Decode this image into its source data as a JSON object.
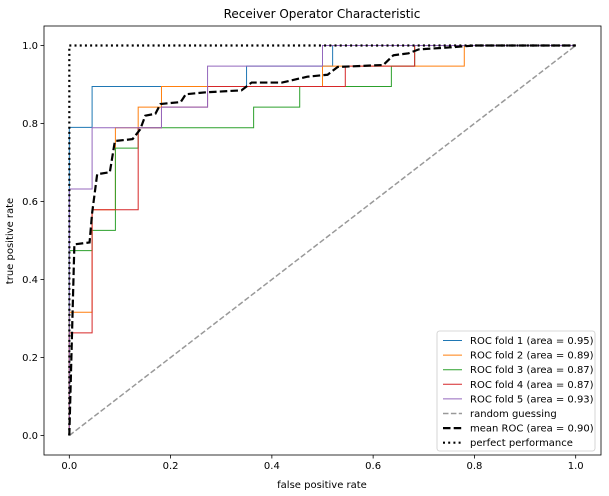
{
  "chart_data": {
    "type": "line",
    "title": "Receiver Operator Characteristic",
    "xlabel": "false positive rate",
    "ylabel": "true positive rate",
    "xlim": [
      -0.05,
      1.05
    ],
    "ylim": [
      -0.05,
      1.05
    ],
    "xticks": [
      0.0,
      0.2,
      0.4,
      0.6,
      0.8,
      1.0
    ],
    "xtick_labels": [
      "0.0",
      "0.2",
      "0.4",
      "0.6",
      "0.8",
      "1.0"
    ],
    "yticks": [
      0.0,
      0.2,
      0.4,
      0.6,
      0.8,
      1.0
    ],
    "ytick_labels": [
      "0.0",
      "0.2",
      "0.4",
      "0.6",
      "0.8",
      "1.0"
    ],
    "grid": false,
    "legend_position": "lower-right",
    "series": [
      {
        "name": "ROC fold 1 (area = 0.95)",
        "color": "#1f77b4",
        "style": "solid",
        "points": [
          [
            0,
            0
          ],
          [
            0,
            0.79
          ],
          [
            0.045,
            0.79
          ],
          [
            0.045,
            0.895
          ],
          [
            0.35,
            0.895
          ],
          [
            0.35,
            0.947
          ],
          [
            0.52,
            0.947
          ],
          [
            0.52,
            1.0
          ],
          [
            1.0,
            1.0
          ]
        ]
      },
      {
        "name": "ROC fold 2 (area = 0.89)",
        "color": "#ff7f0e",
        "style": "solid",
        "points": [
          [
            0,
            0
          ],
          [
            0,
            0.316
          ],
          [
            0.045,
            0.316
          ],
          [
            0.045,
            0.579
          ],
          [
            0.091,
            0.579
          ],
          [
            0.091,
            0.789
          ],
          [
            0.136,
            0.789
          ],
          [
            0.136,
            0.842
          ],
          [
            0.182,
            0.842
          ],
          [
            0.182,
            0.895
          ],
          [
            0.5,
            0.895
          ],
          [
            0.5,
            0.947
          ],
          [
            0.78,
            0.947
          ],
          [
            0.78,
            1.0
          ],
          [
            1.0,
            1.0
          ]
        ]
      },
      {
        "name": "ROC fold 3 (area = 0.87)",
        "color": "#2ca02c",
        "style": "solid",
        "points": [
          [
            0,
            0
          ],
          [
            0,
            0.474
          ],
          [
            0.045,
            0.474
          ],
          [
            0.045,
            0.526
          ],
          [
            0.091,
            0.526
          ],
          [
            0.091,
            0.737
          ],
          [
            0.136,
            0.737
          ],
          [
            0.136,
            0.789
          ],
          [
            0.364,
            0.789
          ],
          [
            0.364,
            0.842
          ],
          [
            0.455,
            0.842
          ],
          [
            0.455,
            0.895
          ],
          [
            0.636,
            0.895
          ],
          [
            0.636,
            0.947
          ],
          [
            0.682,
            0.947
          ],
          [
            0.682,
            1.0
          ],
          [
            1.0,
            1.0
          ]
        ]
      },
      {
        "name": "ROC fold 4 (area = 0.87)",
        "color": "#d62728",
        "style": "solid",
        "points": [
          [
            0,
            0
          ],
          [
            0,
            0.263
          ],
          [
            0.045,
            0.263
          ],
          [
            0.045,
            0.579
          ],
          [
            0.136,
            0.579
          ],
          [
            0.136,
            0.789
          ],
          [
            0.182,
            0.789
          ],
          [
            0.182,
            0.842
          ],
          [
            0.273,
            0.842
          ],
          [
            0.273,
            0.895
          ],
          [
            0.545,
            0.895
          ],
          [
            0.545,
            0.947
          ],
          [
            0.682,
            0.947
          ],
          [
            0.682,
            1.0
          ],
          [
            1.0,
            1.0
          ]
        ]
      },
      {
        "name": "ROC fold 5 (area = 0.93)",
        "color": "#9467bd",
        "style": "solid",
        "points": [
          [
            0,
            0
          ],
          [
            0,
            0.632
          ],
          [
            0.045,
            0.632
          ],
          [
            0.045,
            0.789
          ],
          [
            0.182,
            0.789
          ],
          [
            0.182,
            0.842
          ],
          [
            0.273,
            0.842
          ],
          [
            0.273,
            0.947
          ],
          [
            0.5,
            0.947
          ],
          [
            0.5,
            1.0
          ],
          [
            1.0,
            1.0
          ]
        ]
      },
      {
        "name": "random guessing",
        "color": "#999999",
        "style": "dashed",
        "points": [
          [
            0,
            0
          ],
          [
            1,
            1
          ]
        ]
      },
      {
        "name": "mean ROC (area = 0.90)",
        "color": "#000000",
        "style": "dashed-bold",
        "points": [
          [
            0,
            0
          ],
          [
            0.01,
            0.49
          ],
          [
            0.04,
            0.495
          ],
          [
            0.045,
            0.57
          ],
          [
            0.055,
            0.67
          ],
          [
            0.08,
            0.675
          ],
          [
            0.09,
            0.755
          ],
          [
            0.125,
            0.76
          ],
          [
            0.14,
            0.785
          ],
          [
            0.15,
            0.82
          ],
          [
            0.17,
            0.825
          ],
          [
            0.18,
            0.85
          ],
          [
            0.22,
            0.855
          ],
          [
            0.23,
            0.875
          ],
          [
            0.27,
            0.88
          ],
          [
            0.34,
            0.885
          ],
          [
            0.36,
            0.905
          ],
          [
            0.42,
            0.905
          ],
          [
            0.47,
            0.92
          ],
          [
            0.51,
            0.925
          ],
          [
            0.53,
            0.945
          ],
          [
            0.62,
            0.95
          ],
          [
            0.64,
            0.975
          ],
          [
            0.67,
            0.98
          ],
          [
            0.69,
            0.99
          ],
          [
            0.75,
            0.995
          ],
          [
            0.8,
            1.0
          ],
          [
            1.0,
            1.0
          ]
        ]
      },
      {
        "name": "perfect performance",
        "color": "#000000",
        "style": "dotted",
        "points": [
          [
            0,
            0
          ],
          [
            0,
            1
          ],
          [
            1,
            1
          ]
        ]
      }
    ]
  }
}
